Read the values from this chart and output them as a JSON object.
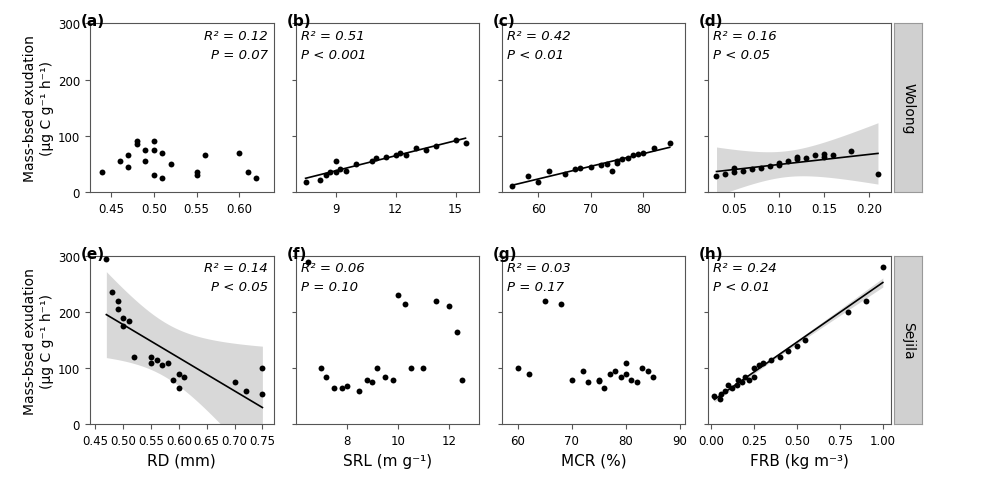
{
  "panels": [
    {
      "label": "a",
      "r2": "R² = 0.12",
      "pval": "P = 0.07",
      "has_line": false,
      "annot_right": true,
      "x": [
        0.44,
        0.46,
        0.47,
        0.47,
        0.48,
        0.48,
        0.49,
        0.49,
        0.5,
        0.5,
        0.5,
        0.51,
        0.51,
        0.52,
        0.55,
        0.55,
        0.56,
        0.6,
        0.61,
        0.62
      ],
      "y": [
        35,
        55,
        65,
        45,
        90,
        85,
        75,
        55,
        90,
        75,
        30,
        25,
        70,
        50,
        30,
        35,
        65,
        70,
        35,
        25
      ],
      "xlim": [
        0.425,
        0.64
      ],
      "ylim": [
        0,
        300
      ],
      "xticks": [
        0.45,
        0.5,
        0.55,
        0.6
      ],
      "xticklabels": [
        "0.45",
        "0.50",
        "0.55",
        "0.60"
      ],
      "yticks": [
        0,
        100,
        200,
        300
      ]
    },
    {
      "label": "b",
      "r2": "R² = 0.51",
      "pval": "P < 0.001",
      "has_line": true,
      "annot_right": false,
      "x": [
        7.5,
        8.2,
        8.5,
        8.7,
        9.0,
        9.0,
        9.2,
        9.5,
        10.0,
        10.8,
        11.0,
        11.5,
        12.0,
        12.2,
        12.5,
        13.0,
        13.5,
        14.0,
        15.0,
        15.5
      ],
      "y": [
        18,
        22,
        30,
        35,
        35,
        55,
        40,
        38,
        50,
        55,
        60,
        62,
        65,
        70,
        65,
        78,
        75,
        82,
        93,
        88
      ],
      "xlim": [
        7.0,
        16.2
      ],
      "ylim": [
        0,
        300
      ],
      "xticks": [
        9,
        12,
        15
      ],
      "xticklabels": [
        "9",
        "12",
        "15"
      ],
      "yticks": [
        0,
        100,
        200,
        300
      ]
    },
    {
      "label": "c",
      "r2": "R² = 0.42",
      "pval": "P < 0.01",
      "has_line": true,
      "annot_right": false,
      "x": [
        55,
        58,
        60,
        62,
        65,
        67,
        68,
        70,
        72,
        73,
        74,
        75,
        75,
        76,
        77,
        78,
        79,
        80,
        82,
        85
      ],
      "y": [
        10,
        28,
        18,
        38,
        32,
        40,
        42,
        45,
        48,
        50,
        38,
        52,
        55,
        58,
        60,
        65,
        68,
        70,
        78,
        88
      ],
      "xlim": [
        53,
        88
      ],
      "ylim": [
        0,
        300
      ],
      "xticks": [
        60,
        70,
        80
      ],
      "xticklabels": [
        "60",
        "70",
        "80"
      ],
      "yticks": [
        0,
        100,
        200,
        300
      ]
    },
    {
      "label": "d",
      "r2": "R² = 0.16",
      "pval": "P < 0.05",
      "has_line": true,
      "annot_right": false,
      "x": [
        0.03,
        0.04,
        0.05,
        0.05,
        0.06,
        0.07,
        0.08,
        0.09,
        0.1,
        0.1,
        0.11,
        0.12,
        0.12,
        0.13,
        0.14,
        0.15,
        0.15,
        0.16,
        0.18,
        0.21
      ],
      "y": [
        28,
        32,
        35,
        42,
        38,
        40,
        43,
        46,
        48,
        52,
        55,
        58,
        62,
        60,
        65,
        62,
        68,
        65,
        72,
        32
      ],
      "xlim": [
        0.02,
        0.225
      ],
      "ylim": [
        0,
        300
      ],
      "xticks": [
        0.05,
        0.1,
        0.15,
        0.2
      ],
      "xticklabels": [
        "0.05",
        "0.10",
        "0.15",
        "0.20"
      ],
      "yticks": [
        0,
        100,
        200,
        300
      ]
    },
    {
      "label": "e",
      "r2": "R² = 0.14",
      "pval": "P < 0.05",
      "has_line": true,
      "annot_right": true,
      "x": [
        0.47,
        0.48,
        0.49,
        0.49,
        0.5,
        0.5,
        0.51,
        0.52,
        0.55,
        0.55,
        0.56,
        0.57,
        0.58,
        0.59,
        0.6,
        0.6,
        0.61,
        0.7,
        0.72,
        0.75,
        0.75
      ],
      "y": [
        295,
        235,
        205,
        220,
        190,
        175,
        185,
        120,
        120,
        110,
        115,
        105,
        110,
        80,
        65,
        90,
        85,
        75,
        60,
        55,
        100
      ],
      "xlim": [
        0.44,
        0.77
      ],
      "ylim": [
        0,
        300
      ],
      "xticks": [
        0.45,
        0.5,
        0.55,
        0.6,
        0.65,
        0.7,
        0.75
      ],
      "xticklabels": [
        "0.45",
        "0.50",
        "0.55",
        "0.60",
        "0.65",
        "0.70",
        "0.75"
      ],
      "yticks": [
        0,
        100,
        200,
        300
      ]
    },
    {
      "label": "f",
      "r2": "R² = 0.06",
      "pval": "P = 0.10",
      "has_line": false,
      "annot_right": false,
      "x": [
        6.5,
        7.0,
        7.2,
        7.5,
        7.8,
        8.0,
        8.5,
        8.8,
        9.0,
        9.2,
        9.5,
        9.8,
        10.0,
        10.3,
        10.5,
        11.0,
        11.5,
        12.0,
        12.3,
        12.5
      ],
      "y": [
        290,
        100,
        85,
        65,
        65,
        68,
        60,
        80,
        75,
        100,
        85,
        80,
        230,
        215,
        100,
        100,
        220,
        210,
        165,
        80
      ],
      "xlim": [
        6.0,
        13.2
      ],
      "ylim": [
        0,
        300
      ],
      "xticks": [
        8,
        10,
        12
      ],
      "xticklabels": [
        "8",
        "10",
        "12"
      ],
      "yticks": [
        0,
        100,
        200,
        300
      ]
    },
    {
      "label": "g",
      "r2": "R² = 0.03",
      "pval": "P = 0.17",
      "has_line": false,
      "annot_right": false,
      "x": [
        60,
        62,
        65,
        68,
        70,
        72,
        73,
        75,
        75,
        76,
        77,
        78,
        79,
        80,
        80,
        81,
        82,
        83,
        84,
        85
      ],
      "y": [
        100,
        90,
        220,
        215,
        80,
        95,
        75,
        80,
        78,
        65,
        90,
        95,
        85,
        90,
        110,
        80,
        75,
        100,
        95,
        85
      ],
      "xlim": [
        57,
        91
      ],
      "ylim": [
        0,
        300
      ],
      "xticks": [
        60,
        70,
        80,
        90
      ],
      "xticklabels": [
        "60",
        "70",
        "80",
        "90"
      ],
      "yticks": [
        0,
        100,
        200,
        300
      ]
    },
    {
      "label": "h",
      "r2": "R² = 0.24",
      "pval": "P < 0.01",
      "has_line": true,
      "annot_right": false,
      "x": [
        0.02,
        0.05,
        0.06,
        0.08,
        0.1,
        0.12,
        0.15,
        0.16,
        0.18,
        0.2,
        0.22,
        0.25,
        0.25,
        0.28,
        0.3,
        0.35,
        0.4,
        0.45,
        0.5,
        0.55,
        0.8,
        0.9,
        1.0
      ],
      "y": [
        50,
        45,
        55,
        60,
        70,
        65,
        70,
        80,
        75,
        85,
        80,
        85,
        100,
        105,
        110,
        115,
        120,
        130,
        140,
        150,
        200,
        220,
        280
      ],
      "xlim": [
        -0.02,
        1.05
      ],
      "ylim": [
        0,
        300
      ],
      "xticks": [
        0.0,
        0.25,
        0.5,
        0.75,
        1.0
      ],
      "xticklabels": [
        "0.00",
        "0.25",
        "0.50",
        "0.75",
        "1.00"
      ],
      "yticks": [
        0,
        100,
        200,
        300
      ]
    }
  ],
  "row_labels": [
    "Wolong",
    "Sejila"
  ],
  "xlabels": [
    "RD (mm)",
    "SRL (m g⁻¹)",
    "MCR (%)",
    "FRB (kg m⁻³)"
  ],
  "ylabel": "Mass-bsed exudation\n(µg C g⁻¹ h⁻¹)",
  "point_color": "black",
  "line_color": "black",
  "shade_alpha": 0.3,
  "label_fontsize": 11,
  "tick_fontsize": 8.5,
  "annot_fontsize": 9.5
}
